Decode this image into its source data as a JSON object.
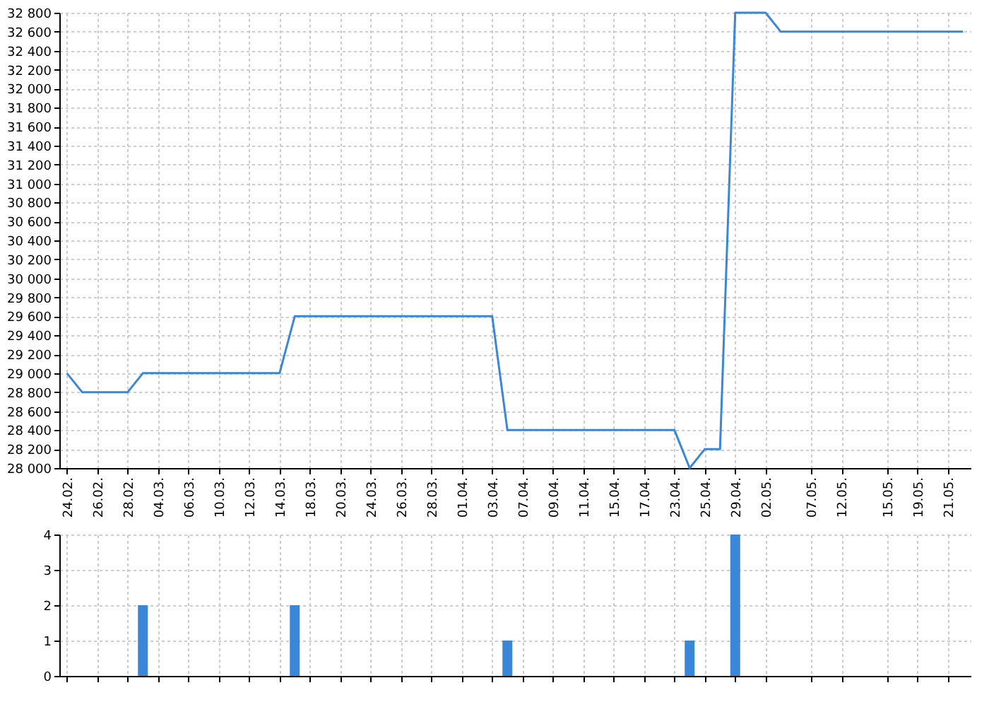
{
  "chart_data": [
    {
      "type": "line",
      "categories": [
        "24.02.",
        null,
        "26.02.",
        null,
        "28.02.",
        null,
        "04.03.",
        null,
        "06.03.",
        null,
        "10.03.",
        null,
        "12.03.",
        null,
        "14.03.",
        null,
        "18.03.",
        null,
        "20.03.",
        null,
        "24.03.",
        null,
        "26.03.",
        null,
        "28.03.",
        null,
        "01.04.",
        null,
        "03.04.",
        null,
        "07.04.",
        null,
        "09.04.",
        null,
        "11.04.",
        null,
        "15.04.",
        null,
        "17.04.",
        null,
        "23.04.",
        null,
        "25.04.",
        null,
        "29.04.",
        null,
        "02.05.",
        null,
        null,
        "07.05.",
        null,
        "12.05.",
        null,
        null,
        "15.05.",
        null,
        "19.05.",
        null,
        "21.05.",
        null
      ],
      "series": [
        {
          "color": "#3a86d8",
          "values": [
            29000,
            28800,
            28800,
            28800,
            28800,
            29000,
            29000,
            29000,
            29000,
            29000,
            29000,
            29000,
            29000,
            29000,
            29000,
            29600,
            29600,
            29600,
            29600,
            29600,
            29600,
            29600,
            29600,
            29600,
            29600,
            29600,
            29600,
            29600,
            29600,
            28400,
            28400,
            28400,
            28400,
            28400,
            28400,
            28400,
            28400,
            28400,
            28400,
            28400,
            28400,
            28000,
            28200,
            28200,
            32800,
            32800,
            32800,
            32600,
            32600,
            32600,
            32600,
            32600,
            32600,
            32600,
            32600,
            32600,
            32600,
            32600,
            32600,
            32600
          ]
        }
      ],
      "ylim": [
        28000,
        32800
      ],
      "yticks": [
        {
          "value": 28000,
          "label": "28 000"
        },
        {
          "value": 28200,
          "label": "28 200"
        },
        {
          "value": 28400,
          "label": "28 400"
        },
        {
          "value": 28600,
          "label": "28 600"
        },
        {
          "value": 28800,
          "label": "28 800"
        },
        {
          "value": 29000,
          "label": "29 000"
        },
        {
          "value": 29200,
          "label": "29 200"
        },
        {
          "value": 29400,
          "label": "29 400"
        },
        {
          "value": 29600,
          "label": "29 600"
        },
        {
          "value": 29800,
          "label": "29 800"
        },
        {
          "value": 30000,
          "label": "30 000"
        },
        {
          "value": 30200,
          "label": "30 200"
        },
        {
          "value": 30400,
          "label": "30 400"
        },
        {
          "value": 30600,
          "label": "30 600"
        },
        {
          "value": 30800,
          "label": "30 800"
        },
        {
          "value": 31000,
          "label": "31 000"
        },
        {
          "value": 31200,
          "label": "31 200"
        },
        {
          "value": 31400,
          "label": "31 400"
        },
        {
          "value": 31600,
          "label": "31 600"
        },
        {
          "value": 31800,
          "label": "31 800"
        },
        {
          "value": 32000,
          "label": "32 000"
        },
        {
          "value": 32200,
          "label": "32 200"
        },
        {
          "value": 32400,
          "label": "32 400"
        },
        {
          "value": 32600,
          "label": "32 600"
        },
        {
          "value": 32800,
          "label": "32 800"
        }
      ],
      "grid": true
    },
    {
      "type": "bar",
      "categories": [
        "24.02.",
        null,
        "26.02.",
        null,
        "28.02.",
        null,
        "04.03.",
        null,
        "06.03.",
        null,
        "10.03.",
        null,
        "12.03.",
        null,
        "14.03.",
        null,
        "18.03.",
        null,
        "20.03.",
        null,
        "24.03.",
        null,
        "26.03.",
        null,
        "28.03.",
        null,
        "01.04.",
        null,
        "03.04.",
        null,
        "07.04.",
        null,
        "09.04.",
        null,
        "11.04.",
        null,
        "15.04.",
        null,
        "17.04.",
        null,
        "23.04.",
        null,
        "25.04.",
        null,
        "29.04.",
        null,
        "02.05.",
        null,
        null,
        "07.05.",
        null,
        "12.05.",
        null,
        null,
        "15.05.",
        null,
        "19.05.",
        null,
        "21.05.",
        null
      ],
      "series": [
        {
          "color": "#2f80d8",
          "values": [
            0,
            0,
            0,
            0,
            0,
            2,
            0,
            0,
            0,
            0,
            0,
            0,
            0,
            0,
            0,
            2,
            0,
            0,
            0,
            0,
            0,
            0,
            0,
            0,
            0,
            0,
            0,
            0,
            0,
            1,
            0,
            0,
            0,
            0,
            0,
            0,
            0,
            0,
            0,
            0,
            0,
            1,
            0,
            0,
            4,
            0,
            0,
            0,
            0,
            0,
            0,
            0,
            0,
            0,
            0,
            0,
            0,
            0,
            0,
            0
          ]
        }
      ],
      "ylim": [
        0,
        4
      ],
      "yticks": [
        0,
        1,
        2,
        3,
        4
      ],
      "grid": true,
      "tick_labels": "y"
    }
  ]
}
